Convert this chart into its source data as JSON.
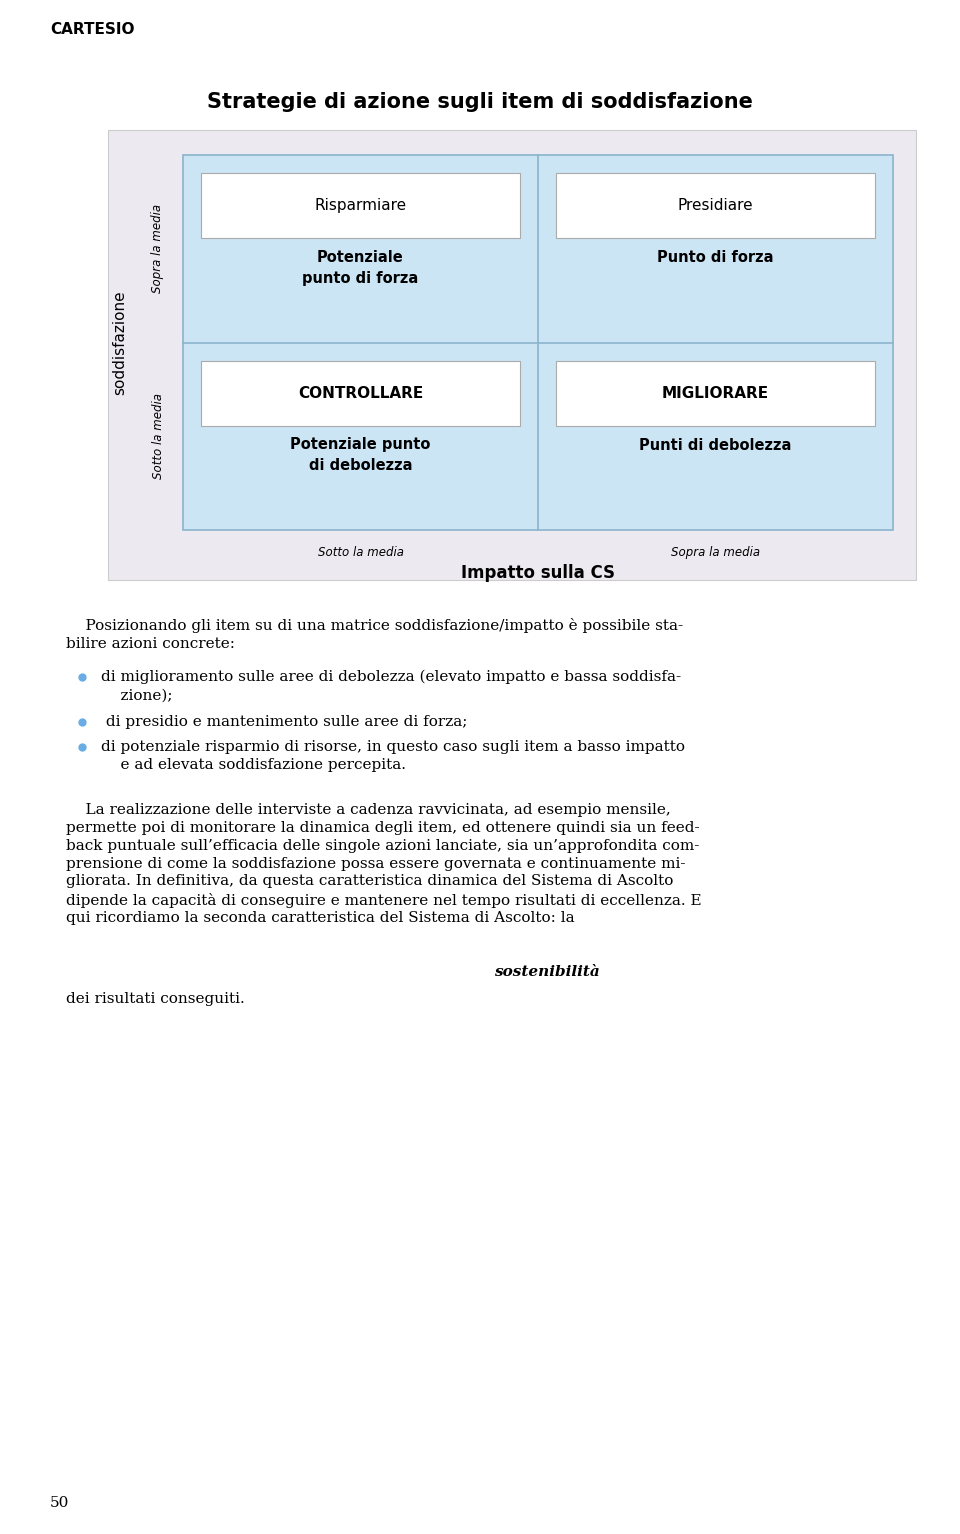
{
  "title": "Strategie di azione sugli item di soddisfazione",
  "header": "CARTESIO",
  "page_number": "50",
  "outer_bg": "#ece9f0",
  "inner_bg": "#cce5f5",
  "box_bg": "#ffffff",
  "ylabel_main": "soddisfazione",
  "ylabel_top": "Sopra la media",
  "ylabel_bottom": "Sotto la media",
  "xlabel_main": "Impatto sulla CS",
  "xlabel_left": "Sotto la media",
  "xlabel_right": "Sopra la media",
  "quadrants": [
    {
      "row": 0,
      "col": 0,
      "title": "Risparmiare",
      "subtitle": "Potenziale\npunto di forza",
      "title_bold": false
    },
    {
      "row": 0,
      "col": 1,
      "title": "Presidiare",
      "subtitle": "Punto di forza",
      "title_bold": false
    },
    {
      "row": 1,
      "col": 0,
      "title": "CONTROLLARE",
      "subtitle": "Potenziale punto\ndi debolezza",
      "title_bold": true
    },
    {
      "row": 1,
      "col": 1,
      "title": "MIGLIORARE",
      "subtitle": "Punti di debolezza",
      "title_bold": true
    }
  ],
  "body_intro": "    Posizionando gli item su di una matrice soddisfazione/impatto è possibile sta-\nbilire azioni concrete:",
  "bullet_points": [
    "di miglioramento sulle aree di debolezza (elevato impatto e bassa soddisfa-\n    zione);",
    " di presidio e mantenimento sulle aree di forza;",
    "di potenziale risparmio di risorse, in questo caso sugli item a basso impatto\n    e ad elevata soddisfazione percepita."
  ],
  "para_before_italic": "    La realizzazione delle interviste a cadenza ravvicinata, ad esempio mensile,\npermette poi di monitorare la dinamica degli item, ed ottenere quindi sia un feed-\nback puntuale sull’efficacia delle singole azioni lanciate, sia un’approfondita com-\nprensione di come la soddisfazione possa essere governata e continuamente mi-\ngliorata. In definitiva, da questa caratteristica dinamica del Sistema di Ascolto\ndipende la capacità di conseguire e mantenere nel tempo risultati di eccellenza. E\nqui ricordiamo la seconda caratteristica del Sistema di Ascolto: la ",
  "italic_word": "sostenibilità",
  "para_after_italic": "\ndei risultati conseguiti.",
  "bullet_color": "#6aade4"
}
